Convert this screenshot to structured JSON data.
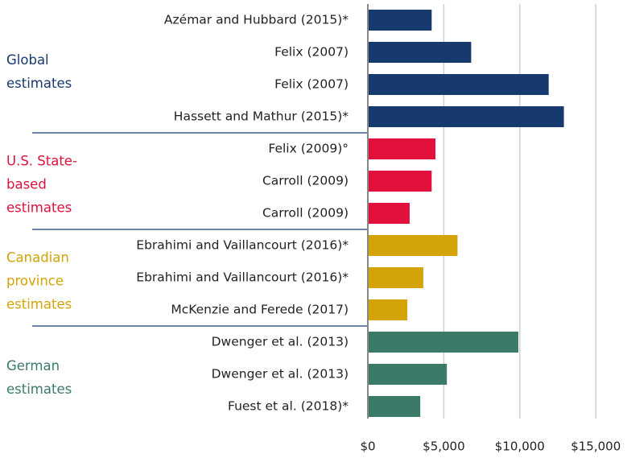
{
  "chart_data": {
    "type": "bar",
    "orientation": "horizontal",
    "groups": [
      {
        "label_lines": [
          "Global",
          "estimates"
        ],
        "color": "#173a6e",
        "categories": [
          "Azémar and Hubbard (2015)*",
          "Felix (2007)",
          "Felix (2007)",
          "Hassett and Mathur (2015)*"
        ],
        "values": [
          4200,
          6800,
          11900,
          12900
        ]
      },
      {
        "label_lines": [
          "U.S. State-",
          "based",
          "estimates"
        ],
        "color": "#e2103c",
        "categories": [
          "Felix (2009)°",
          "Carroll (2009)",
          "Carroll (2009)"
        ],
        "values": [
          4450,
          4200,
          2750
        ]
      },
      {
        "label_lines": [
          "Canadian",
          "province",
          "estimates"
        ],
        "color": "#d3a307",
        "categories": [
          "Ebrahimi and Vaillancourt (2016)*",
          "Ebrahimi and Vaillancourt (2016)*",
          "McKenzie and Ferede (2017)"
        ],
        "values": [
          5900,
          3650,
          2600
        ]
      },
      {
        "label_lines": [
          "German",
          "estimates"
        ],
        "color": "#3b7a69",
        "categories": [
          "Dwenger et al. (2013)",
          "Dwenger et al. (2013)",
          "Fuest et al. (2018)*"
        ],
        "values": [
          9900,
          5200,
          3450
        ]
      }
    ],
    "xlim": [
      0,
      17000
    ],
    "xticks": [
      {
        "value": 0,
        "label": "$0"
      },
      {
        "value": 5000,
        "label": "$5,000"
      },
      {
        "value": 10000,
        "label": "$10,000"
      },
      {
        "value": 15000,
        "label": "$15,000"
      }
    ],
    "grid": true
  }
}
